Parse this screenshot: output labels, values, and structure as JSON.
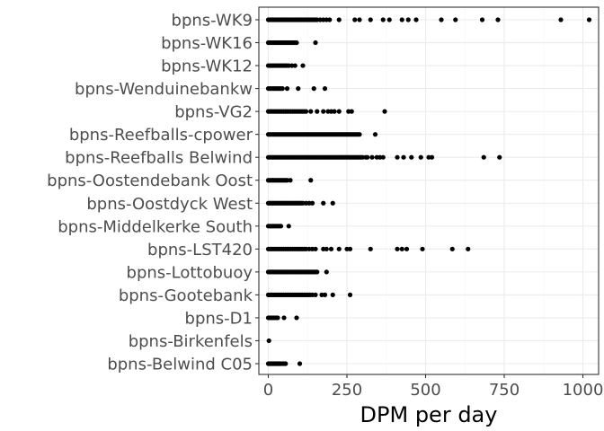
{
  "chart_data": {
    "type": "scatter",
    "title": "",
    "xlabel": "DPM per day",
    "ylabel": "",
    "xlim": [
      -30,
      1050
    ],
    "x_ticks": [
      0,
      250,
      500,
      750,
      1000
    ],
    "x_tick_labels": [
      "0",
      "250",
      "500",
      "750",
      "1000"
    ],
    "x_minor_ticks": [
      125,
      375,
      625,
      875
    ],
    "grid": true,
    "legend": "none",
    "point_color": "#000000",
    "panel_border_color": "#333333",
    "grid_major_color": "#ebebeb",
    "grid_minor_color": "#f5f5f5",
    "categories": [
      "bpns-Belwind C05",
      "bpns-Birkenfels",
      "bpns-D1",
      "bpns-Gootebank",
      "bpns-Lottobuoy",
      "bpns-LST420",
      "bpns-Middelkerke South",
      "bpns-Oostdyck West",
      "bpns-Oostendebank Oost",
      "bpns-Reefballs Belwind",
      "bpns-Reefballs-cpower",
      "bpns-VG2",
      "bpns-Wenduinebankw",
      "bpns-WK12",
      "bpns-WK16",
      "bpns-WK9"
    ],
    "series": [
      {
        "category": "bpns-Belwind C05",
        "x": [
          0,
          3,
          6,
          9,
          12,
          15,
          18,
          21,
          24,
          27,
          30,
          33,
          36,
          40,
          45,
          50,
          55,
          100
        ]
      },
      {
        "category": "bpns-Birkenfels",
        "x": [
          2
        ]
      },
      {
        "category": "bpns-D1",
        "x": [
          0,
          4,
          8,
          12,
          16,
          20,
          25,
          30,
          50,
          90
        ]
      },
      {
        "category": "bpns-Gootebank",
        "x": [
          0,
          6,
          12,
          18,
          24,
          30,
          36,
          42,
          48,
          54,
          60,
          66,
          72,
          78,
          84,
          90,
          96,
          102,
          108,
          114,
          120,
          126,
          132,
          140,
          150,
          170,
          180,
          205,
          260
        ]
      },
      {
        "category": "bpns-Lottobuoy",
        "x": [
          0,
          5,
          10,
          15,
          20,
          25,
          30,
          35,
          40,
          45,
          50,
          55,
          60,
          65,
          70,
          75,
          80,
          85,
          90,
          95,
          100,
          105,
          110,
          115,
          120,
          125,
          130,
          135,
          140,
          145,
          150,
          155,
          185
        ]
      },
      {
        "category": "bpns-LST420",
        "x": [
          0,
          6,
          12,
          18,
          24,
          30,
          36,
          42,
          48,
          54,
          60,
          66,
          72,
          78,
          84,
          90,
          96,
          102,
          108,
          114,
          120,
          130,
          140,
          150,
          175,
          185,
          200,
          225,
          250,
          260,
          325,
          410,
          425,
          440,
          490,
          585,
          635
        ]
      },
      {
        "category": "bpns-Middelkerke South",
        "x": [
          0,
          5,
          10,
          15,
          20,
          25,
          30,
          35,
          40,
          65
        ]
      },
      {
        "category": "bpns-Oostdyck West",
        "x": [
          0,
          5,
          10,
          15,
          20,
          25,
          30,
          35,
          40,
          45,
          50,
          55,
          60,
          65,
          70,
          75,
          80,
          85,
          90,
          95,
          100,
          105,
          110,
          120,
          130,
          140,
          175,
          205
        ]
      },
      {
        "category": "bpns-Oostendebank Oost",
        "x": [
          0,
          5,
          10,
          15,
          20,
          25,
          30,
          35,
          40,
          45,
          50,
          55,
          60,
          70,
          135
        ]
      },
      {
        "category": "bpns-Reefballs Belwind",
        "x": [
          0,
          5,
          10,
          15,
          20,
          25,
          30,
          35,
          40,
          45,
          50,
          55,
          60,
          65,
          70,
          75,
          80,
          85,
          90,
          95,
          100,
          105,
          110,
          115,
          120,
          125,
          130,
          135,
          140,
          145,
          150,
          155,
          160,
          165,
          170,
          175,
          180,
          185,
          190,
          195,
          200,
          205,
          210,
          215,
          220,
          225,
          230,
          235,
          240,
          245,
          250,
          255,
          260,
          265,
          270,
          275,
          280,
          285,
          290,
          295,
          300,
          310,
          315,
          330,
          345,
          355,
          365,
          410,
          430,
          455,
          485,
          510,
          520,
          685,
          735
        ]
      },
      {
        "category": "bpns-Reefballs-cpower",
        "x": [
          0,
          5,
          10,
          15,
          20,
          25,
          30,
          35,
          40,
          45,
          50,
          55,
          60,
          65,
          70,
          75,
          80,
          85,
          90,
          95,
          100,
          105,
          110,
          115,
          120,
          125,
          130,
          135,
          140,
          145,
          150,
          155,
          160,
          165,
          170,
          175,
          180,
          185,
          190,
          195,
          200,
          205,
          210,
          215,
          220,
          225,
          230,
          235,
          240,
          245,
          250,
          255,
          260,
          265,
          270,
          275,
          280,
          285,
          290,
          340
        ]
      },
      {
        "category": "bpns-VG2",
        "x": [
          0,
          6,
          12,
          18,
          24,
          30,
          36,
          42,
          48,
          54,
          60,
          66,
          72,
          78,
          84,
          90,
          96,
          102,
          108,
          114,
          120,
          135,
          155,
          175,
          190,
          200,
          210,
          225,
          255,
          265,
          370
        ]
      },
      {
        "category": "bpns-Wenduinebankw",
        "x": [
          0,
          5,
          10,
          15,
          20,
          25,
          30,
          35,
          40,
          45,
          60,
          95,
          145,
          180
        ]
      },
      {
        "category": "bpns-WK12",
        "x": [
          0,
          5,
          10,
          15,
          20,
          25,
          30,
          35,
          40,
          45,
          50,
          55,
          60,
          65,
          75,
          85,
          110
        ]
      },
      {
        "category": "bpns-WK16",
        "x": [
          0,
          5,
          10,
          15,
          20,
          25,
          30,
          35,
          40,
          45,
          50,
          55,
          60,
          65,
          70,
          75,
          80,
          85,
          90,
          150
        ]
      },
      {
        "category": "bpns-WK9",
        "x": [
          0,
          5,
          10,
          15,
          20,
          25,
          30,
          35,
          40,
          45,
          50,
          55,
          60,
          65,
          70,
          75,
          80,
          85,
          90,
          95,
          100,
          105,
          110,
          115,
          120,
          125,
          130,
          135,
          140,
          145,
          150,
          155,
          165,
          175,
          185,
          195,
          225,
          275,
          290,
          325,
          365,
          385,
          425,
          445,
          470,
          550,
          595,
          680,
          730,
          930,
          1020
        ]
      }
    ]
  }
}
